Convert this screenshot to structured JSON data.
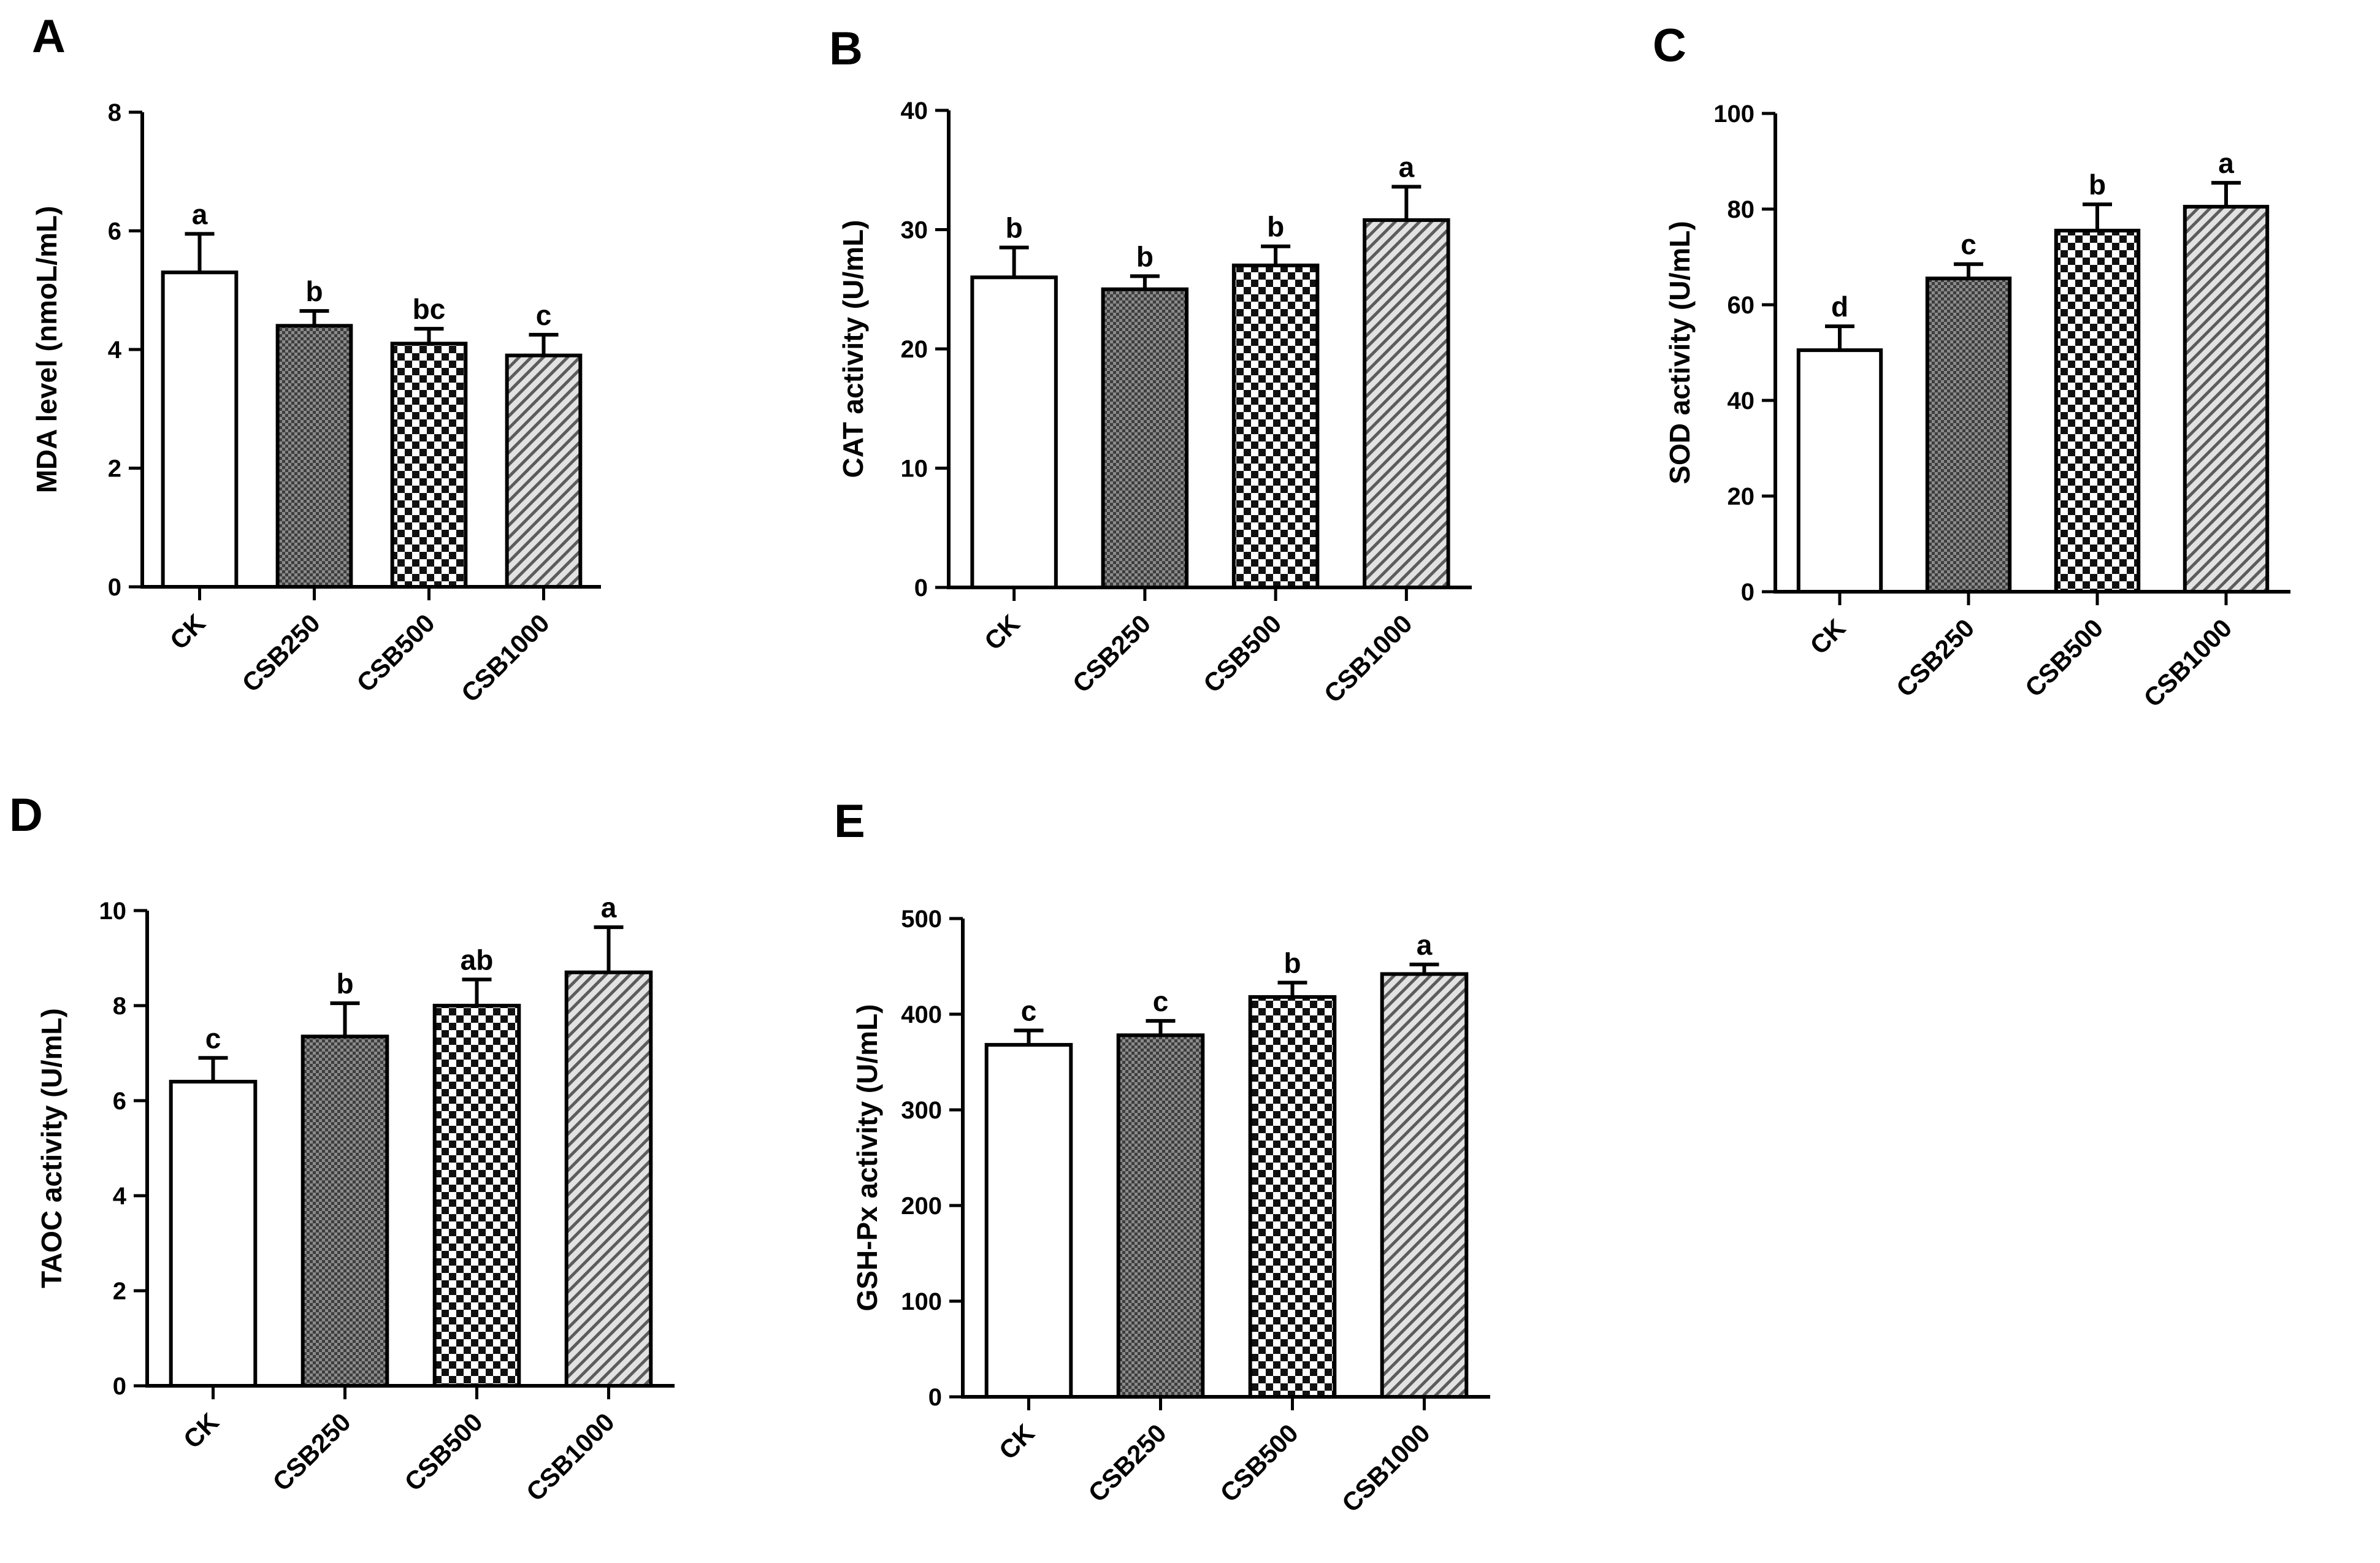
{
  "figure": {
    "patterns": {
      "CK": "open",
      "CSB250": "fine-checker",
      "CSB500": "checkerboard",
      "CSB1000": "diagonal-stripes"
    },
    "colors": {
      "ink": "#000000",
      "background": "#ffffff",
      "fill_dark": "#5a5a5a",
      "fill_light": "#d6d6d6"
    }
  },
  "chart_data": [
    {
      "panel": "A",
      "type": "bar",
      "title": "",
      "xlabel": "",
      "ylabel": "MDA level (nmoL/mL)",
      "ylim": [
        0,
        8
      ],
      "yticks": [
        0,
        2,
        4,
        6,
        8
      ],
      "categories": [
        "CK",
        "CSB250",
        "CSB500",
        "CSB1000"
      ],
      "values": [
        5.3,
        4.4,
        4.1,
        3.9
      ],
      "errors": [
        0.65,
        0.25,
        0.25,
        0.35
      ],
      "significance": [
        "a",
        "b",
        "bc",
        "c"
      ]
    },
    {
      "panel": "B",
      "type": "bar",
      "title": "",
      "xlabel": "",
      "ylabel": "CAT activity (U/mL)",
      "ylim": [
        0,
        40
      ],
      "yticks": [
        0,
        10,
        20,
        30,
        40
      ],
      "categories": [
        "CK",
        "CSB250",
        "CSB500",
        "CSB1000"
      ],
      "values": [
        26.0,
        25.0,
        27.0,
        30.8
      ],
      "errors": [
        2.5,
        1.1,
        1.6,
        2.8
      ],
      "significance": [
        "b",
        "b",
        "b",
        "a"
      ]
    },
    {
      "panel": "C",
      "type": "bar",
      "title": "",
      "xlabel": "",
      "ylabel": "SOD activity (U/mL)",
      "ylim": [
        0,
        100
      ],
      "yticks": [
        0,
        20,
        40,
        60,
        80,
        100
      ],
      "categories": [
        "CK",
        "CSB250",
        "CSB500",
        "CSB1000"
      ],
      "values": [
        50.5,
        65.5,
        75.5,
        80.5
      ],
      "errors": [
        5.0,
        3.0,
        5.5,
        5.0
      ],
      "significance": [
        "d",
        "c",
        "b",
        "a"
      ]
    },
    {
      "panel": "D",
      "type": "bar",
      "title": "",
      "xlabel": "",
      "ylabel": "TAOC activity (U/mL)",
      "ylim": [
        0,
        10
      ],
      "yticks": [
        0,
        2,
        4,
        6,
        8,
        10
      ],
      "categories": [
        "CK",
        "CSB250",
        "CSB500",
        "CSB1000"
      ],
      "values": [
        6.4,
        7.35,
        8.0,
        8.7
      ],
      "errors": [
        0.5,
        0.7,
        0.55,
        0.95
      ],
      "significance": [
        "c",
        "b",
        "ab",
        "a"
      ]
    },
    {
      "panel": "E",
      "type": "bar",
      "title": "",
      "xlabel": "",
      "ylabel": "GSH-Px activity (U/mL)",
      "ylim": [
        0,
        500
      ],
      "yticks": [
        0,
        100,
        200,
        300,
        400,
        500
      ],
      "categories": [
        "CK",
        "CSB250",
        "CSB500",
        "CSB1000"
      ],
      "values": [
        368,
        378,
        418,
        442
      ],
      "errors": [
        15,
        15,
        15,
        10
      ],
      "significance": [
        "c",
        "c",
        "b",
        "a"
      ]
    }
  ]
}
